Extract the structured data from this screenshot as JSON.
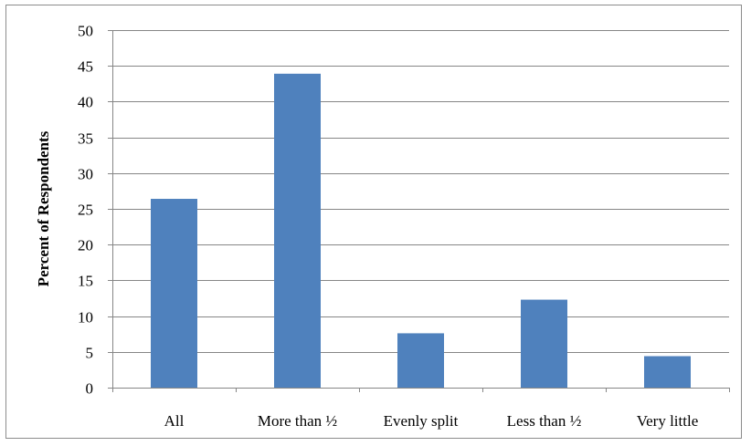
{
  "chart_data": {
    "type": "bar",
    "title": "",
    "xlabel": "",
    "ylabel": "Percent of Respondents",
    "categories": [
      "All",
      "More than ½",
      "Evenly split",
      "Less than ½",
      "Very little"
    ],
    "values": [
      26.4,
      43.9,
      7.6,
      12.3,
      4.4
    ],
    "ylim": [
      0,
      50
    ],
    "yticks": [
      0,
      5,
      10,
      15,
      20,
      25,
      30,
      35,
      40,
      45,
      50
    ],
    "grid": true,
    "legend": "none",
    "colors": {
      "bar": "#4f81bd",
      "grid": "#868686",
      "axis": "#868686"
    }
  }
}
